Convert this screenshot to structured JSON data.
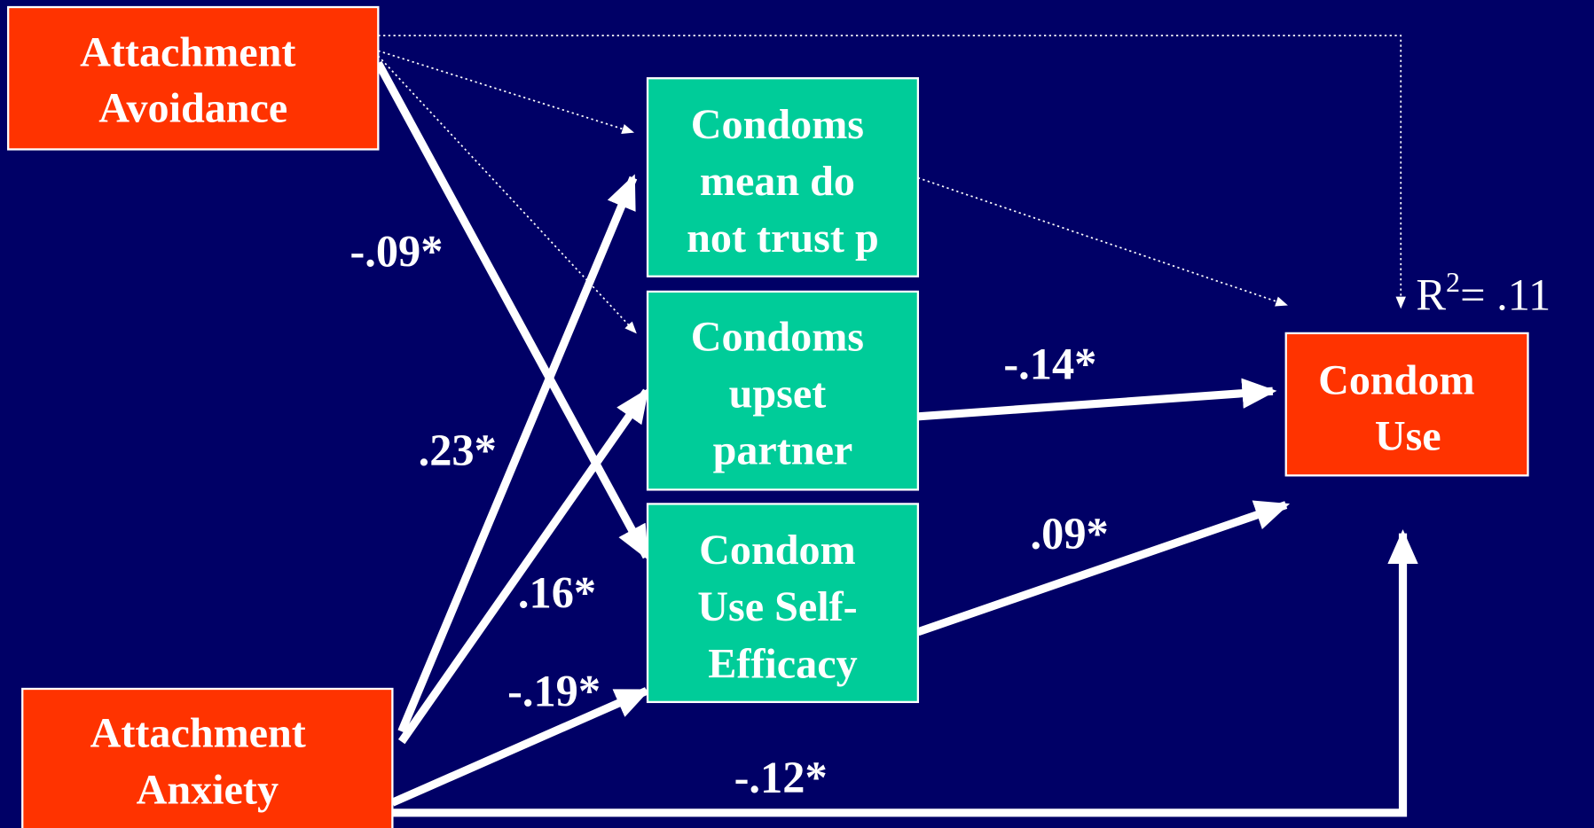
{
  "nodes": [
    {
      "lines": [
        "Attachment",
        "Avoidance"
      ]
    },
    {
      "lines": [
        "Attachment",
        "Anxiety"
      ]
    },
    {
      "lines": [
        "Condoms",
        "mean do",
        "not trust p"
      ]
    },
    {
      "lines": [
        "Condoms",
        "upset",
        "partner"
      ]
    },
    {
      "lines": [
        "Condom",
        "Use Self-",
        "Efficacy"
      ]
    },
    {
      "lines": [
        "Condom",
        "Use"
      ]
    }
  ],
  "paths": [
    {
      "label": "-.09*"
    },
    {
      "label": ".23*"
    },
    {
      "label": ".16*"
    },
    {
      "label": "-.19*"
    },
    {
      "label": "-.14*"
    },
    {
      "label": ".09*"
    },
    {
      "label": "-.12*"
    }
  ],
  "r_squared": {
    "base": "R",
    "sup": "2",
    "rest": "= .11"
  }
}
